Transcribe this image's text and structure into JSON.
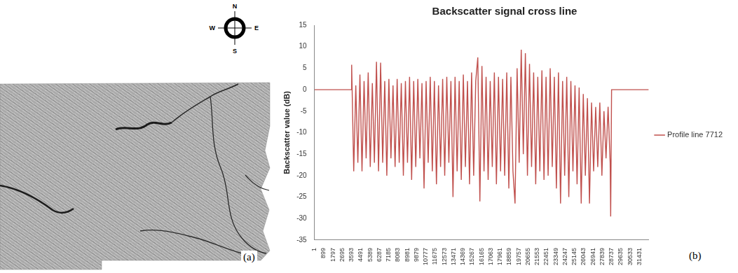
{
  "chart_data": {
    "type": "line",
    "title": "Backscatter signal cross line",
    "y_label": "Backscatter value (dB)",
    "x": [
      1,
      3592,
      3600,
      3800,
      4000,
      4200,
      4400,
      4600,
      4800,
      5000,
      5200,
      5400,
      5600,
      5800,
      6000,
      6200,
      6400,
      6600,
      6800,
      7000,
      7200,
      7400,
      7600,
      7800,
      8000,
      8200,
      8400,
      8600,
      8800,
      9000,
      9200,
      9400,
      9600,
      9800,
      10000,
      10200,
      10400,
      10600,
      10800,
      11000,
      11200,
      11400,
      11600,
      11800,
      12000,
      12200,
      12400,
      12600,
      12800,
      13000,
      13200,
      13400,
      13600,
      13800,
      14000,
      14200,
      14400,
      14600,
      14800,
      15000,
      15200,
      15400,
      15600,
      15800,
      16000,
      16200,
      16400,
      16600,
      16800,
      17000,
      17200,
      17400,
      17600,
      17800,
      18000,
      18200,
      18400,
      18600,
      18800,
      19000,
      19200,
      19400,
      19600,
      19800,
      20000,
      20200,
      20400,
      20600,
      20800,
      21000,
      21200,
      21400,
      21600,
      21800,
      22000,
      22200,
      22400,
      22600,
      22800,
      23000,
      23200,
      23400,
      23600,
      23800,
      24000,
      24200,
      24400,
      24600,
      24800,
      25000,
      25200,
      25400,
      25600,
      25800,
      26000,
      26200,
      26400,
      26600,
      26800,
      27000,
      27200,
      27400,
      27600,
      27800,
      28000,
      28200,
      28400,
      28600,
      28650,
      28737,
      32329
    ],
    "series": [
      {
        "name": "Profile line 7712",
        "color": "#c0504d",
        "values": [
          0,
          0,
          5.8,
          -19,
          1,
          -17,
          3.5,
          -19,
          2,
          -16,
          4,
          -18,
          1.5,
          -17,
          6.5,
          -19,
          6.3,
          -17,
          2,
          -20,
          2.5,
          -16,
          1,
          -18,
          2.5,
          -17,
          1.5,
          -20,
          2,
          -17,
          3,
          -21,
          2,
          -18,
          2.5,
          -16,
          1.5,
          -23,
          2,
          -17,
          3,
          -19,
          2,
          -22,
          1,
          -18,
          2.5,
          -20,
          3,
          -17,
          2,
          -25,
          3,
          -19,
          2,
          -21,
          3.5,
          -18,
          2,
          -22,
          4,
          -20,
          2,
          7.5,
          -26,
          5.5,
          -19,
          3,
          -21,
          2,
          -18,
          4,
          -22,
          3,
          -19,
          2.5,
          -20,
          4,
          -23,
          3,
          -19,
          -26.5,
          5,
          -17,
          9.3,
          -15,
          8.5,
          -20,
          6,
          -18,
          4,
          -22,
          3,
          -19,
          4.5,
          -21,
          3,
          -20,
          5,
          -18,
          3,
          -23,
          4,
          -26.5,
          2,
          -20,
          3,
          -25,
          2,
          -19,
          1,
          -22,
          0.5,
          -26.5,
          -1,
          -20,
          -2,
          -26.5,
          -3,
          -19,
          -4,
          -18,
          -3,
          -20,
          -5,
          -16,
          -4,
          -17,
          -29.5,
          0,
          0
        ]
      }
    ],
    "xlim": [
      1,
      32329
    ],
    "xticks": [
      1,
      899,
      1797,
      2695,
      3593,
      4491,
      5389,
      6287,
      7185,
      8083,
      8981,
      9879,
      10777,
      11675,
      12573,
      13471,
      14369,
      15267,
      16165,
      17063,
      17961,
      18859,
      19757,
      20655,
      21553,
      22451,
      23349,
      24247,
      25145,
      26043,
      26941,
      27839,
      28737,
      29635,
      30533,
      31431
    ],
    "ylim": [
      -35,
      15
    ],
    "yticks": [
      -35,
      -30,
      -25,
      -20,
      -15,
      -10,
      -5,
      0,
      5,
      10,
      15
    ],
    "grid": false,
    "legend": "right"
  },
  "panel_labels": [
    "(a)",
    "(b)"
  ],
  "compass": {
    "north": "N",
    "east": "E",
    "south": "S",
    "west": "W"
  }
}
